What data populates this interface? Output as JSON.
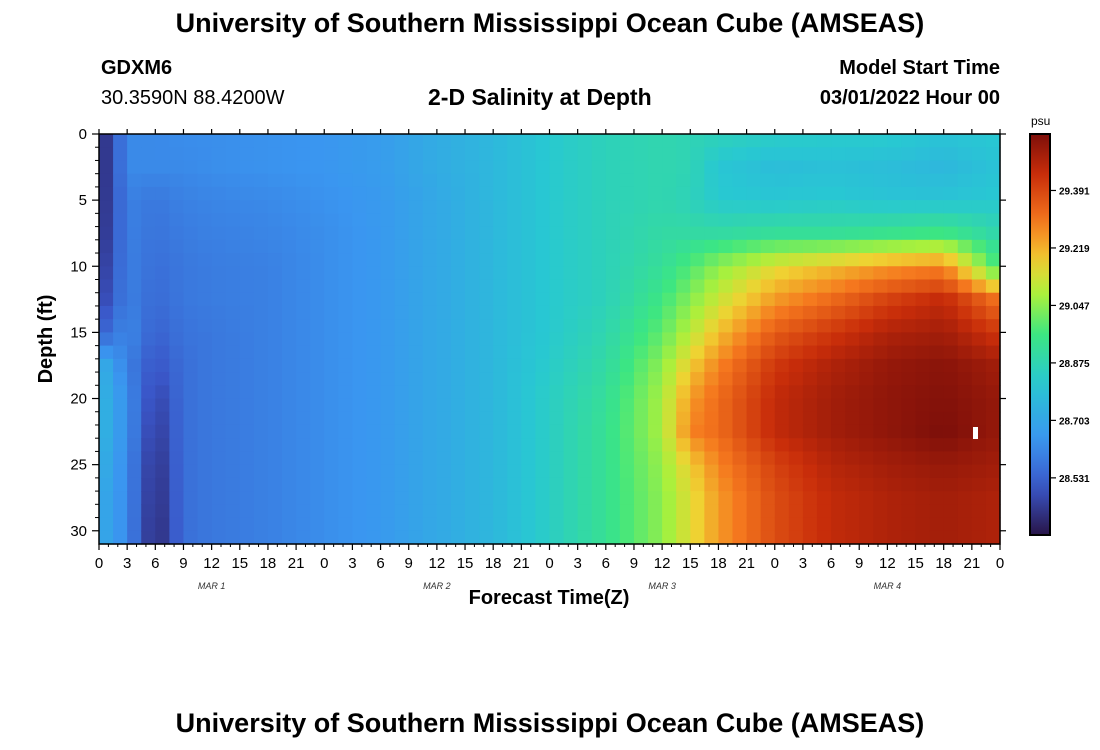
{
  "header": {
    "title": "University of Southern Mississippi Ocean Cube (AMSEAS)",
    "station_id": "GDXM6",
    "coordinates": "30.3590N  88.4200W",
    "chart_title": "2-D Salinity at Depth",
    "start_label": "Model Start Time",
    "start_value": "03/01/2022 Hour 00"
  },
  "footer": {
    "title": "University of Southern Mississippi Ocean Cube (AMSEAS)"
  },
  "chart_data": {
    "type": "heatmap",
    "title": "2-D Salinity at Depth",
    "xlabel": "Forecast Time(Z)",
    "ylabel": "Depth (ft)",
    "x_unit": "hours since 03/01/2022 00Z",
    "xlim": [
      0,
      96
    ],
    "ylim": [
      0,
      31
    ],
    "y_inverted": true,
    "x_ticks": [
      0,
      3,
      6,
      9,
      12,
      15,
      18,
      21,
      24,
      27,
      30,
      33,
      36,
      39,
      42,
      45,
      48,
      51,
      54,
      57,
      60,
      63,
      66,
      69,
      72,
      75,
      78,
      81,
      84,
      87,
      90,
      93,
      96
    ],
    "x_tick_labels": [
      "0",
      "3",
      "6",
      "9",
      "12",
      "15",
      "18",
      "21",
      "0",
      "3",
      "6",
      "9",
      "12",
      "15",
      "18",
      "21",
      "0",
      "3",
      "6",
      "9",
      "12",
      "15",
      "18",
      "21",
      "0",
      "3",
      "6",
      "9",
      "12",
      "15",
      "18",
      "21",
      "0"
    ],
    "day_labels": [
      {
        "x": 12,
        "label": "MAR 1"
      },
      {
        "x": 36,
        "label": "MAR 2"
      },
      {
        "x": 60,
        "label": "MAR 3"
      },
      {
        "x": 84,
        "label": "MAR 4"
      }
    ],
    "y_ticks": [
      0,
      5,
      10,
      15,
      20,
      25,
      30
    ],
    "colorbar": {
      "unit": "psu",
      "min": 28.36,
      "max": 29.56,
      "ticks": [
        28.531,
        28.703,
        28.875,
        29.047,
        29.219,
        29.391
      ],
      "tick_labels": [
        "28.531",
        "28.703",
        "28.875",
        "29.047",
        "29.219",
        "29.391"
      ]
    },
    "depths": [
      0,
      2.5,
      5,
      7.5,
      10,
      12.5,
      15,
      17.5,
      20,
      22.5,
      25,
      27.5,
      30
    ],
    "times": [
      0,
      3,
      6,
      9,
      12,
      18,
      24,
      30,
      36,
      42,
      48,
      54,
      60,
      63,
      66,
      72,
      78,
      84,
      90,
      96
    ],
    "salinity_psu": [
      [
        28.38,
        28.62,
        28.62,
        28.63,
        28.63,
        28.64,
        28.65,
        28.67,
        28.72,
        28.76,
        28.82,
        28.86,
        28.88,
        28.87,
        28.86,
        28.84,
        28.83,
        28.83,
        28.8,
        28.82
      ],
      [
        28.38,
        28.62,
        28.62,
        28.62,
        28.63,
        28.64,
        28.65,
        28.67,
        28.72,
        28.76,
        28.82,
        28.86,
        28.88,
        28.87,
        28.81,
        28.78,
        28.79,
        28.78,
        28.76,
        28.8
      ],
      [
        28.39,
        28.6,
        28.58,
        28.6,
        28.61,
        28.62,
        28.64,
        28.66,
        28.71,
        28.76,
        28.82,
        28.86,
        28.88,
        28.86,
        28.82,
        28.81,
        28.82,
        28.8,
        28.8,
        28.82
      ],
      [
        28.4,
        28.6,
        28.57,
        28.59,
        28.6,
        28.61,
        28.63,
        28.66,
        28.71,
        28.76,
        28.82,
        28.86,
        28.9,
        28.9,
        28.9,
        28.92,
        28.92,
        28.94,
        28.96,
        28.88
      ],
      [
        28.42,
        28.6,
        28.56,
        28.58,
        28.59,
        28.6,
        28.63,
        28.66,
        28.71,
        28.76,
        28.82,
        28.86,
        28.92,
        28.98,
        29.05,
        29.15,
        29.2,
        29.25,
        29.28,
        28.95
      ],
      [
        28.45,
        28.6,
        28.55,
        28.58,
        28.59,
        28.6,
        28.63,
        28.66,
        28.71,
        28.76,
        28.82,
        28.86,
        28.96,
        29.04,
        29.12,
        29.25,
        29.32,
        29.4,
        29.45,
        29.3
      ],
      [
        28.52,
        28.62,
        28.53,
        28.57,
        28.58,
        28.6,
        28.63,
        28.66,
        28.71,
        28.76,
        28.82,
        28.88,
        29.0,
        29.1,
        29.2,
        29.35,
        29.42,
        29.48,
        29.5,
        29.42
      ],
      [
        28.74,
        28.6,
        28.5,
        28.56,
        28.58,
        28.6,
        28.63,
        28.66,
        28.71,
        28.76,
        28.83,
        28.9,
        29.05,
        29.18,
        29.28,
        29.42,
        29.48,
        29.52,
        29.54,
        29.5
      ],
      [
        28.76,
        28.63,
        28.46,
        28.56,
        28.58,
        28.6,
        28.63,
        28.66,
        28.71,
        28.76,
        28.84,
        28.92,
        29.08,
        29.25,
        29.32,
        29.45,
        29.5,
        29.53,
        29.55,
        29.52
      ],
      [
        28.76,
        28.63,
        28.44,
        28.56,
        28.58,
        28.6,
        28.63,
        28.66,
        28.71,
        28.76,
        28.84,
        28.93,
        29.08,
        29.28,
        29.32,
        29.45,
        29.5,
        29.53,
        29.56,
        29.52
      ],
      [
        28.74,
        28.62,
        28.42,
        28.56,
        28.58,
        28.6,
        28.63,
        28.66,
        28.71,
        28.76,
        28.84,
        28.93,
        29.06,
        29.18,
        29.28,
        29.4,
        29.47,
        29.5,
        29.52,
        29.5
      ],
      [
        28.72,
        28.62,
        28.41,
        28.56,
        28.58,
        28.6,
        28.63,
        28.66,
        28.71,
        28.76,
        28.84,
        28.93,
        29.05,
        29.15,
        29.25,
        29.38,
        29.45,
        29.48,
        29.5,
        29.48
      ],
      [
        28.72,
        28.62,
        28.4,
        28.56,
        28.58,
        28.6,
        28.63,
        28.66,
        28.71,
        28.76,
        28.84,
        28.93,
        29.05,
        29.15,
        29.25,
        29.38,
        29.45,
        29.48,
        29.5,
        29.48
      ]
    ]
  }
}
